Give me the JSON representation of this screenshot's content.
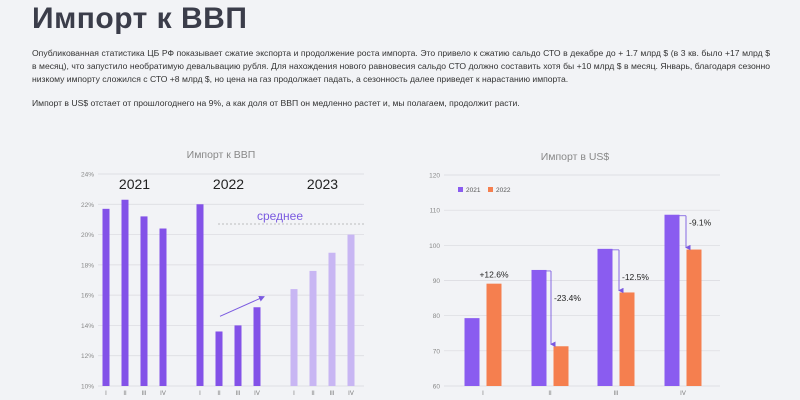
{
  "page": {
    "title": "Импорт к ВВП",
    "paragraph1": "Опубликованная статистика ЦБ РФ показывает сжатие экспорта и продолжение роста импорта. Это привело к сжатию сальдо СТО в декабре до + 1.7 млрд $ (в 3 кв. было +17 млрд $ в месяц), что запустило необратимую девальвацию рубля. Для нахождения нового равновесия сальдо СТО должно составить хотя бы +10 млрд $ в месяц. Январь, благодаря сезонно низкому импорту сложился с СТО +8 млрд $, но цена на газ продолжает падать, а сезонность далее приведет к нарастанию импорта.",
    "paragraph2": "Импорт в US$ отстает от прошлогоднего на 9%, а как доля от ВВП он медленно растет и, мы полагаем, продолжит расти."
  },
  "colors": {
    "c2021": "#8352e8",
    "c2022": "#8352e8",
    "c2023": "#c8b6f3",
    "bar2021": "#8a5cf0",
    "bar2022": "#f57f4f",
    "arrow": "#7a5ae0",
    "grid": "#d9d9de"
  },
  "chart_data": [
    {
      "type": "bar",
      "title": "Импорт к ВВП",
      "ylim": [
        10,
        24
      ],
      "yticks": [
        "10%",
        "12%",
        "14%",
        "16%",
        "18%",
        "20%",
        "22%",
        "24%"
      ],
      "groups": [
        {
          "year": "2021",
          "categories": [
            "I",
            "II",
            "III",
            "IV"
          ],
          "values": [
            21.7,
            22.3,
            21.2,
            20.4
          ]
        },
        {
          "year": "2022",
          "categories": [
            "I",
            "II",
            "III",
            "IV"
          ],
          "values": [
            22.0,
            13.6,
            14.0,
            15.2
          ]
        },
        {
          "year": "2023",
          "categories": [
            "I",
            "II",
            "III",
            "IV"
          ],
          "values": [
            16.4,
            17.6,
            18.8,
            20.0
          ]
        }
      ],
      "average": {
        "label": "среднее",
        "value": 20.7
      }
    },
    {
      "type": "bar",
      "title": "Импорт в US$",
      "ylim": [
        60,
        120
      ],
      "yticks": [
        "60",
        "70",
        "80",
        "90",
        "100",
        "110",
        "120"
      ],
      "categories": [
        "I",
        "II",
        "III",
        "IV"
      ],
      "series": [
        {
          "name": "2021",
          "values": [
            79.3,
            93.0,
            99.0,
            108.7
          ]
        },
        {
          "name": "2022",
          "values": [
            89.1,
            71.3,
            86.6,
            98.8
          ]
        }
      ],
      "annotations": [
        "+12.6%",
        "-23.4%",
        "-12.5%",
        "-9.1%"
      ]
    }
  ]
}
